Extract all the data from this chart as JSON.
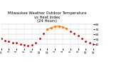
{
  "title": "Milwaukee Weather Outdoor Temperature\nvs Heat Index\n(24 Hours)",
  "title_fontsize": 3.8,
  "bg_color": "#ffffff",
  "grid_color": "#bbbbbb",
  "temp_color": "#cc0000",
  "heat_color": "#ff8800",
  "x_hours": [
    0,
    1,
    2,
    3,
    4,
    5,
    6,
    7,
    8,
    9,
    10,
    11,
    12,
    13,
    14,
    15,
    16,
    17,
    18,
    19,
    20,
    21,
    22,
    23,
    24
  ],
  "temp_values": [
    52,
    48,
    46,
    44,
    43,
    41,
    39,
    37,
    39,
    44,
    52,
    62,
    70,
    74,
    76,
    77,
    75,
    72,
    67,
    62,
    57,
    52,
    46,
    43,
    41
  ],
  "heat_values": [
    null,
    null,
    null,
    null,
    null,
    null,
    null,
    null,
    null,
    null,
    null,
    null,
    70,
    74,
    76,
    77,
    75,
    72,
    null,
    null,
    null,
    null,
    null,
    null,
    null
  ],
  "ylim": [
    32,
    82
  ],
  "xlim": [
    0,
    24
  ],
  "yticks": [
    40,
    50,
    60,
    70,
    80
  ],
  "xticks": [
    0,
    2,
    4,
    6,
    8,
    10,
    12,
    14,
    16,
    18,
    20,
    22,
    24
  ],
  "xtick_labels": [
    "12",
    "2",
    "4",
    "6",
    "8",
    "10",
    "12",
    "2",
    "4",
    "6",
    "8",
    "10",
    "12"
  ],
  "xlabel_fontsize": 3.0,
  "ylabel_fontsize": 3.0,
  "marker_size": 1.0,
  "line_width": 0.8,
  "vgrid_positions": [
    0,
    2,
    4,
    6,
    8,
    10,
    12,
    14,
    16,
    18,
    20,
    22,
    24
  ]
}
